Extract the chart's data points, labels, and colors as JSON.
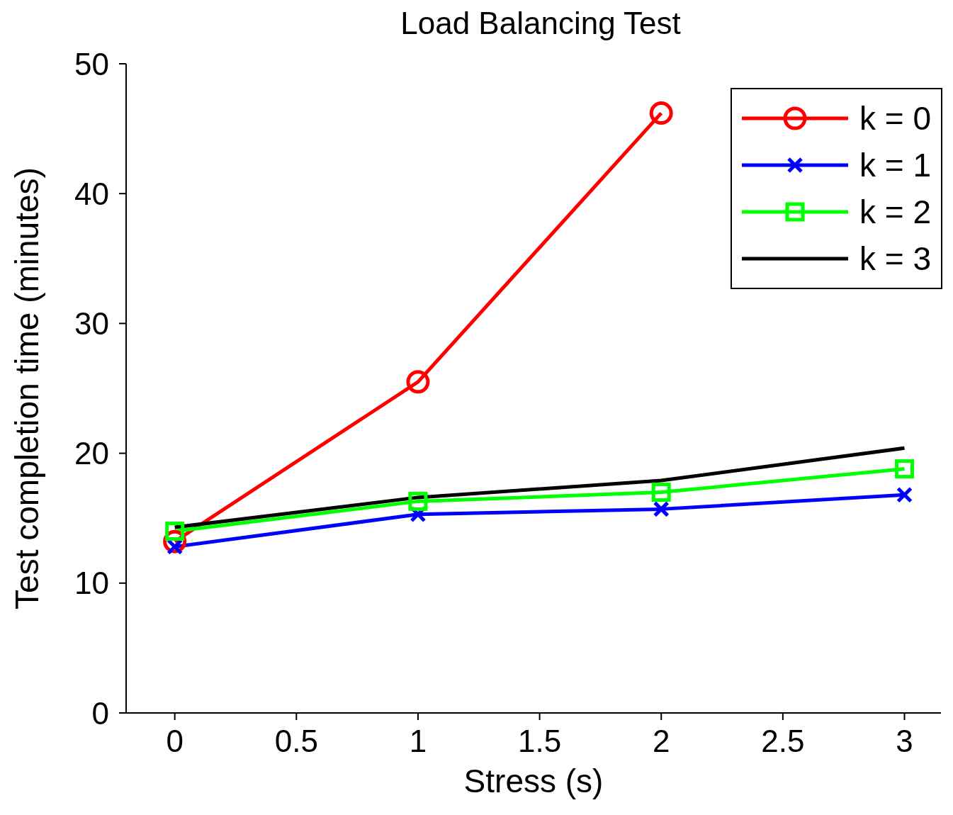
{
  "chart_data": {
    "type": "line",
    "title": "Load Balancing Test",
    "xlabel": "Stress (s)",
    "ylabel": "Test completion time (minutes)",
    "xlim": [
      -0.2,
      3.15
    ],
    "xticks": [
      0,
      0.5,
      1,
      1.5,
      2,
      2.5,
      3
    ],
    "ylim": [
      0,
      50
    ],
    "yticks": [
      0,
      10,
      20,
      30,
      40,
      50
    ],
    "grid": false,
    "legend": "top right",
    "series": [
      {
        "name": "k = 0",
        "color": "#ff0000",
        "marker": "circle",
        "x": [
          0,
          1,
          2
        ],
        "values": [
          13.2,
          25.5,
          46.2
        ]
      },
      {
        "name": "k = 1",
        "color": "#0000ff",
        "marker": "cross",
        "x": [
          0,
          1,
          2,
          3
        ],
        "values": [
          12.8,
          15.3,
          15.7,
          16.8
        ]
      },
      {
        "name": "k = 2",
        "color": "#00ff00",
        "marker": "square",
        "x": [
          0,
          1,
          2,
          3
        ],
        "values": [
          14.0,
          16.3,
          17.0,
          18.8
        ]
      },
      {
        "name": "k = 3",
        "color": "#000000",
        "marker": "none",
        "x": [
          0,
          1,
          2,
          3
        ],
        "values": [
          14.3,
          16.6,
          17.9,
          20.4
        ]
      }
    ]
  }
}
